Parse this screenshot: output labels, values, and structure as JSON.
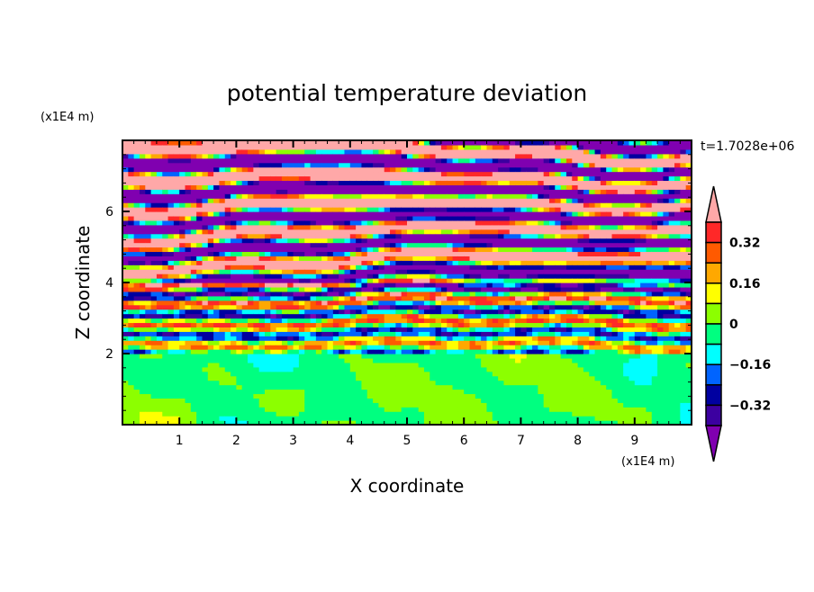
{
  "chart_data": {
    "type": "heatmap",
    "title": "potential temperature deviation",
    "xlabel": "X coordinate",
    "ylabel": "Z coordinate",
    "x_unit": "(x1E4 m)",
    "y_unit": "(x1E4 m)",
    "time_label": "t=1.7028e+06",
    "xlim": [
      0,
      10
    ],
    "ylim": [
      0,
      8
    ],
    "x_ticks": [
      "1",
      "2",
      "3",
      "4",
      "5",
      "6",
      "7",
      "8",
      "9"
    ],
    "x_tick_values": [
      1,
      2,
      3,
      4,
      5,
      6,
      7,
      8,
      9
    ],
    "y_ticks": [
      "2",
      "4",
      "6"
    ],
    "y_tick_values": [
      2,
      4,
      6
    ],
    "levels": [
      -0.4,
      -0.32,
      -0.24,
      -0.16,
      -0.08,
      0,
      0.08,
      0.16,
      0.24,
      0.32,
      0.4
    ],
    "colorbar_labels": [
      {
        "value": 0.32,
        "text": "0.32"
      },
      {
        "value": 0.16,
        "text": "0.16"
      },
      {
        "value": 0,
        "text": "0"
      },
      {
        "value": -0.16,
        "text": "−0.16"
      },
      {
        "value": -0.32,
        "text": "−0.32"
      }
    ],
    "colors": [
      "#8000b0",
      "#3c00a0",
      "#0000a0",
      "#0064ff",
      "#00ffff",
      "#00ff80",
      "#8cff00",
      "#ffff00",
      "#ffa800",
      "#ff5a00",
      "#ff2828",
      "#ffa8a8"
    ],
    "colorbar_extend": "both",
    "description_of_field": "near-zero mixed layer below z=2, horizontally layered bands of alternating sign above z=2 with amplitude growing upward"
  }
}
